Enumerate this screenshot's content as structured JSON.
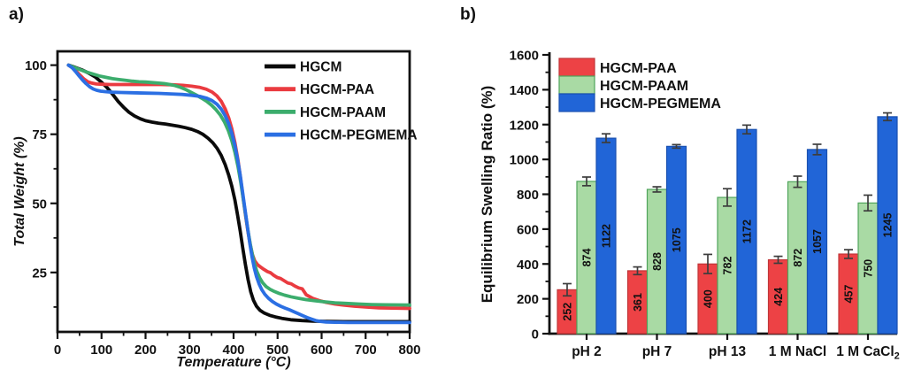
{
  "figure": {
    "panel_a_label": "a)",
    "panel_b_label": "b)"
  },
  "chart_data": [
    {
      "id": "tga",
      "type": "line",
      "xlabel": "Temperature (°C)",
      "ylabel": "Total Weight (%)",
      "xlim": [
        0,
        800
      ],
      "ylim": [
        3.5,
        105
      ],
      "xticks": [
        0,
        100,
        200,
        300,
        400,
        500,
        600,
        700,
        800
      ],
      "xticks_minor": [
        50,
        150,
        250,
        350,
        450,
        550,
        650,
        750
      ],
      "yticks": [
        25,
        50,
        75,
        100
      ],
      "yticks_minor": [
        12.5,
        37.5,
        62.5,
        87.5
      ],
      "grid": false,
      "frame": true,
      "legend_position": "top-right-inside",
      "axis_color": "#111111",
      "series": [
        {
          "name": "HGCM",
          "color": "#0a0a0a",
          "points": [
            [
              25,
              100
            ],
            [
              40,
              99.2
            ],
            [
              55,
              98.3
            ],
            [
              70,
              97.2
            ],
            [
              85,
              95.8
            ],
            [
              100,
              93.8
            ],
            [
              112,
              92
            ],
            [
              125,
              89.5
            ],
            [
              138,
              86.8
            ],
            [
              150,
              84.8
            ],
            [
              162,
              83
            ],
            [
              175,
              81.6
            ],
            [
              188,
              80.6
            ],
            [
              200,
              79.9
            ],
            [
              215,
              79.4
            ],
            [
              230,
              79
            ],
            [
              245,
              78.7
            ],
            [
              260,
              78.3
            ],
            [
              275,
              77.9
            ],
            [
              290,
              77.4
            ],
            [
              305,
              76.8
            ],
            [
              318,
              76
            ],
            [
              330,
              75
            ],
            [
              342,
              73.6
            ],
            [
              353,
              71.9
            ],
            [
              363,
              69.8
            ],
            [
              372,
              67.3
            ],
            [
              381,
              64
            ],
            [
              389,
              60.2
            ],
            [
              396,
              56.2
            ],
            [
              403,
              51.2
            ],
            [
              409,
              45.8
            ],
            [
              415,
              40
            ],
            [
              421,
              33.8
            ],
            [
              427,
              27.8
            ],
            [
              433,
              22.4
            ],
            [
              439,
              18
            ],
            [
              445,
              15
            ],
            [
              452,
              12.8
            ],
            [
              460,
              11.3
            ],
            [
              470,
              10.3
            ],
            [
              482,
              9.5
            ],
            [
              495,
              8.9
            ],
            [
              510,
              8.4
            ],
            [
              530,
              7.9
            ],
            [
              555,
              7.6
            ],
            [
              580,
              7.4
            ],
            [
              610,
              7.3
            ],
            [
              650,
              7.2
            ],
            [
              700,
              7.2
            ],
            [
              750,
              7.2
            ],
            [
              800,
              7.2
            ]
          ]
        },
        {
          "name": "HGCM-PAA",
          "color": "#EA3B40",
          "points": [
            [
              25,
              100
            ],
            [
              33,
              99.2
            ],
            [
              42,
              97.9
            ],
            [
              51,
              96.4
            ],
            [
              60,
              95
            ],
            [
              69,
              94
            ],
            [
              78,
              93.5
            ],
            [
              88,
              93.2
            ],
            [
              100,
              93.1
            ],
            [
              120,
              93
            ],
            [
              145,
              93
            ],
            [
              175,
              93
            ],
            [
              205,
              93
            ],
            [
              235,
              93
            ],
            [
              262,
              92.9
            ],
            [
              285,
              92.7
            ],
            [
              305,
              92.4
            ],
            [
              322,
              92
            ],
            [
              338,
              91.3
            ],
            [
              351,
              90.3
            ],
            [
              362,
              88.9
            ],
            [
              372,
              86.9
            ],
            [
              381,
              84.2
            ],
            [
              389,
              80.9
            ],
            [
              396,
              77
            ],
            [
              403,
              72
            ],
            [
              410,
              65.6
            ],
            [
              416,
              58.9
            ],
            [
              422,
              51.8
            ],
            [
              428,
              44.8
            ],
            [
              433,
              39.5
            ],
            [
              438,
              34.9
            ],
            [
              443,
              31.4
            ],
            [
              448,
              29.2
            ],
            [
              454,
              27.9
            ],
            [
              461,
              27
            ],
            [
              469,
              26.1
            ],
            [
              477,
              25.3
            ],
            [
              484,
              24.9
            ],
            [
              491,
              24
            ],
            [
              499,
              23.2
            ],
            [
              507,
              22.8
            ],
            [
              515,
              22
            ],
            [
              523,
              21.2
            ],
            [
              531,
              20.9
            ],
            [
              539,
              20.1
            ],
            [
              548,
              19.4
            ],
            [
              556,
              19.1
            ],
            [
              565,
              16.9
            ],
            [
              580,
              15.6
            ],
            [
              595,
              14.8
            ],
            [
              610,
              14.2
            ],
            [
              630,
              13.6
            ],
            [
              650,
              13.2
            ],
            [
              675,
              12.8
            ],
            [
              700,
              12.5
            ],
            [
              730,
              12.2
            ],
            [
              760,
              12.1
            ],
            [
              800,
              12
            ]
          ]
        },
        {
          "name": "HGCM-PAAM",
          "color": "#3CAD6D",
          "points": [
            [
              25,
              100
            ],
            [
              38,
              99.2
            ],
            [
              52,
              98.3
            ],
            [
              66,
              97.5
            ],
            [
              80,
              96.8
            ],
            [
              95,
              96.1
            ],
            [
              110,
              95.6
            ],
            [
              125,
              95.1
            ],
            [
              140,
              94.8
            ],
            [
              155,
              94.5
            ],
            [
              170,
              94.2
            ],
            [
              185,
              94
            ],
            [
              200,
              93.9
            ],
            [
              215,
              93.7
            ],
            [
              230,
              93.5
            ],
            [
              243,
              93.3
            ],
            [
              255,
              93
            ],
            [
              267,
              92.6
            ],
            [
              279,
              92
            ],
            [
              291,
              91.2
            ],
            [
              303,
              90.2
            ],
            [
              315,
              89.2
            ],
            [
              327,
              88.1
            ],
            [
              339,
              86.9
            ],
            [
              350,
              85.5
            ],
            [
              360,
              83.9
            ],
            [
              370,
              81.9
            ],
            [
              379,
              79.5
            ],
            [
              388,
              76.4
            ],
            [
              396,
              72.7
            ],
            [
              403,
              68.5
            ],
            [
              410,
              63.3
            ],
            [
              416,
              57.8
            ],
            [
              422,
              51.6
            ],
            [
              428,
              45.2
            ],
            [
              433,
              39.9
            ],
            [
              438,
              35.2
            ],
            [
              443,
              31.2
            ],
            [
              448,
              27.9
            ],
            [
              453,
              25.3
            ],
            [
              459,
              23.1
            ],
            [
              466,
              21.3
            ],
            [
              474,
              19.9
            ],
            [
              483,
              18.9
            ],
            [
              493,
              18.1
            ],
            [
              504,
              17.4
            ],
            [
              516,
              16.8
            ],
            [
              530,
              16.2
            ],
            [
              546,
              15.7
            ],
            [
              564,
              15.2
            ],
            [
              584,
              14.8
            ],
            [
              606,
              14.4
            ],
            [
              630,
              14
            ],
            [
              656,
              13.8
            ],
            [
              684,
              13.6
            ],
            [
              714,
              13.4
            ],
            [
              746,
              13.3
            ],
            [
              775,
              13.25
            ],
            [
              800,
              13.2
            ]
          ]
        },
        {
          "name": "HGCM-PEGMEMA",
          "color": "#2B6FE3",
          "points": [
            [
              25,
              100
            ],
            [
              33,
              99.1
            ],
            [
              41,
              97.7
            ],
            [
              49,
              96.1
            ],
            [
              57,
              94.6
            ],
            [
              65,
              93.3
            ],
            [
              73,
              92.2
            ],
            [
              81,
              91.4
            ],
            [
              89,
              90.9
            ],
            [
              98,
              90.6
            ],
            [
              110,
              90.4
            ],
            [
              125,
              90.2
            ],
            [
              145,
              90.1
            ],
            [
              170,
              90
            ],
            [
              200,
              89.9
            ],
            [
              230,
              89.8
            ],
            [
              258,
              89.6
            ],
            [
              283,
              89.4
            ],
            [
              305,
              89.1
            ],
            [
              323,
              88.7
            ],
            [
              338,
              88.1
            ],
            [
              351,
              87.2
            ],
            [
              362,
              85.9
            ],
            [
              372,
              84.1
            ],
            [
              381,
              81.7
            ],
            [
              389,
              78.8
            ],
            [
              396,
              75.4
            ],
            [
              403,
              70.9
            ],
            [
              409,
              66
            ],
            [
              415,
              60.2
            ],
            [
              421,
              53.6
            ],
            [
              427,
              46.7
            ],
            [
              432,
              40.9
            ],
            [
              437,
              35.4
            ],
            [
              442,
              30.6
            ],
            [
              447,
              26.6
            ],
            [
              452,
              23.5
            ],
            [
              458,
              20.8
            ],
            [
              464,
              18.8
            ],
            [
              471,
              17.1
            ],
            [
              479,
              15.7
            ],
            [
              488,
              14.5
            ],
            [
              497,
              13.6
            ],
            [
              507,
              12.8
            ],
            [
              517,
              12.1
            ],
            [
              527,
              11.5
            ],
            [
              537,
              10.8
            ],
            [
              547,
              10.1
            ],
            [
              557,
              9.4
            ],
            [
              567,
              8.7
            ],
            [
              577,
              8.1
            ],
            [
              587,
              7.6
            ],
            [
              597,
              7.3
            ],
            [
              610,
              7.1
            ],
            [
              630,
              7
            ],
            [
              660,
              6.9
            ],
            [
              700,
              6.9
            ],
            [
              750,
              6.9
            ],
            [
              800,
              6.9
            ]
          ]
        }
      ]
    },
    {
      "id": "swelling",
      "type": "bar",
      "ylabel": "Equilibrium Swelling Ratio (%)",
      "ylim": [
        0,
        1600
      ],
      "yticks": [
        0,
        200,
        400,
        600,
        800,
        1000,
        1200,
        1400,
        1600
      ],
      "yticks_minor": [
        100,
        300,
        500,
        700,
        900,
        1100,
        1300,
        1500
      ],
      "grid": false,
      "frame": false,
      "legend_position": "top-left-inside",
      "axis_color": "#111111",
      "error_color": "#3d3d3d",
      "value_label_color": "#111111",
      "categories": [
        {
          "label": "pH 2",
          "sub": ""
        },
        {
          "label": "pH 7",
          "sub": ""
        },
        {
          "label": "pH 13",
          "sub": ""
        },
        {
          "label": "1 M NaCl",
          "sub": ""
        },
        {
          "label": "1 M CaCl",
          "sub": "2"
        }
      ],
      "series": [
        {
          "name": "HGCM-PAA",
          "fill": "#ED4245",
          "edge": "#C03538",
          "values": [
            252,
            361,
            400,
            424,
            457
          ],
          "errors": [
            35,
            22,
            55,
            20,
            25
          ]
        },
        {
          "name": "HGCM-PAAM",
          "fill": "#A9DAA4",
          "edge": "#4FA45B",
          "values": [
            874,
            828,
            782,
            872,
            750
          ],
          "errors": [
            25,
            15,
            50,
            32,
            45
          ]
        },
        {
          "name": "HGCM-PEGMEMA",
          "fill": "#2165D7",
          "edge": "#1A51B0",
          "values": [
            1122,
            1075,
            1172,
            1057,
            1245
          ],
          "errors": [
            25,
            10,
            25,
            30,
            22
          ]
        }
      ]
    }
  ]
}
